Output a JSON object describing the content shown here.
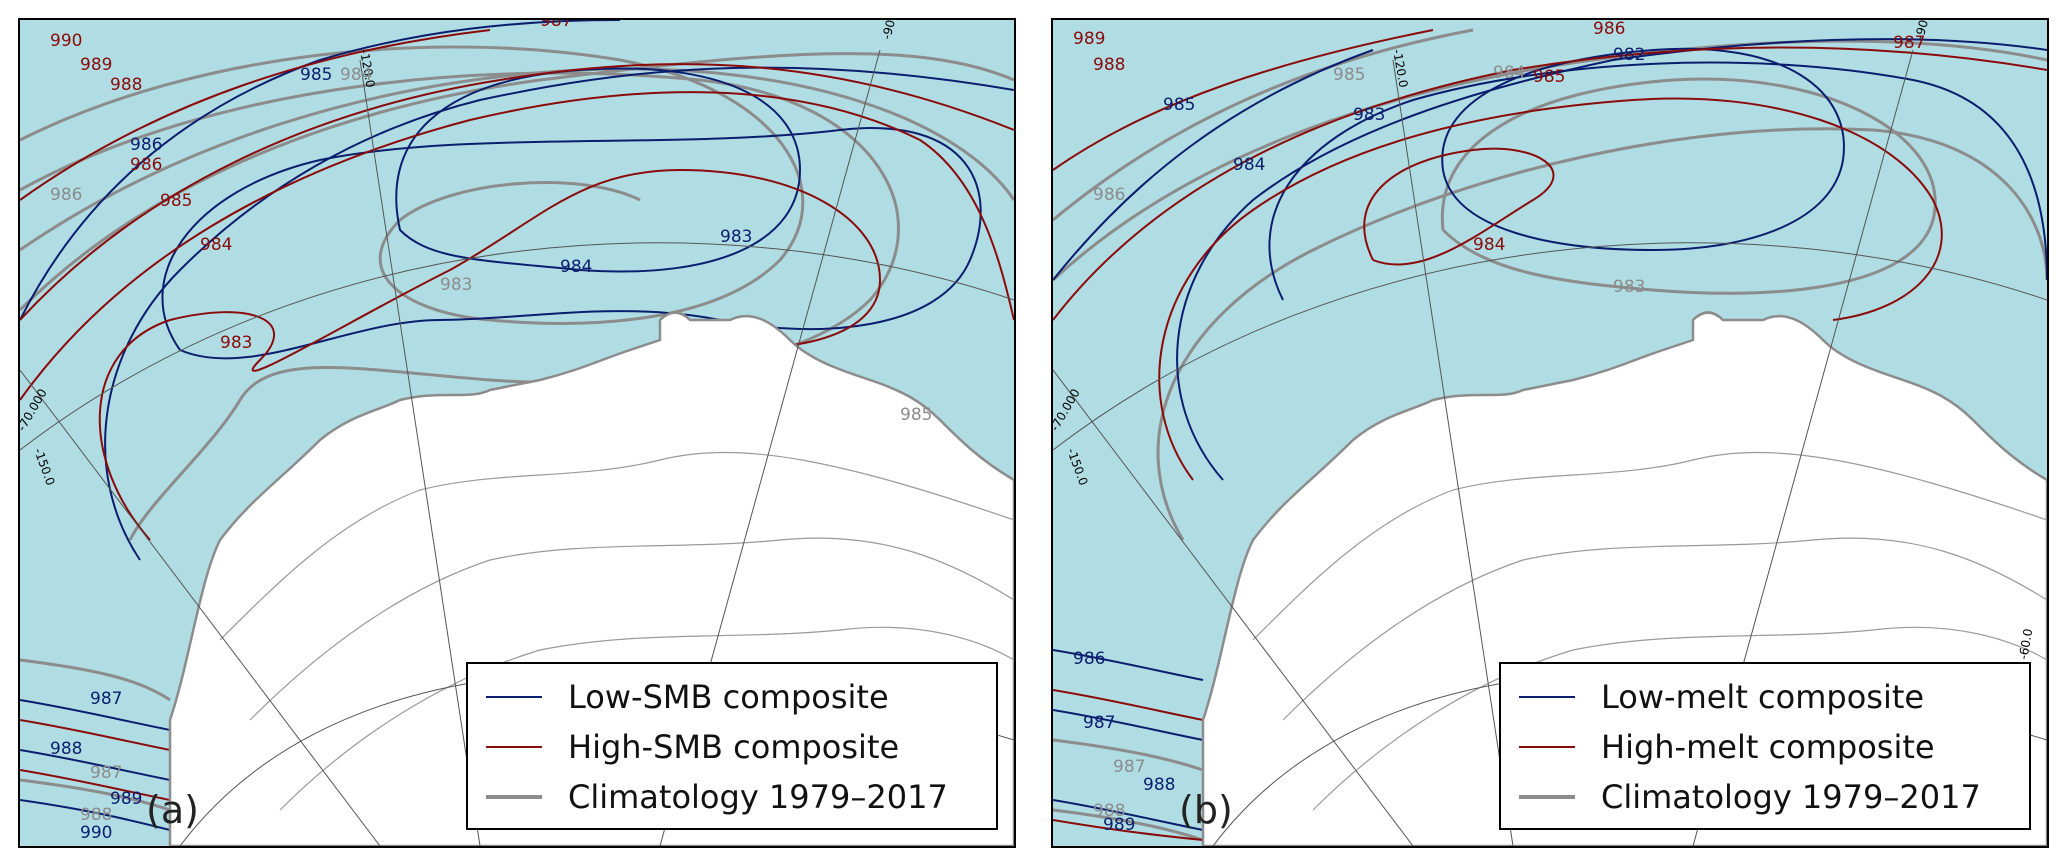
{
  "colors": {
    "ocean": "#b0dde3",
    "low": "#0b1d6e",
    "high": "#8b0a0a",
    "clim": "#8c8c8c",
    "land": "#ffffff",
    "elev": "#9a9a9a",
    "grid": "#555555"
  },
  "panels": [
    {
      "tag": "(a)",
      "legend": [
        {
          "label": "Low-SMB composite",
          "color": "low"
        },
        {
          "label": "High-SMB composite",
          "color": "high"
        },
        {
          "label": "Climatology 1979–2017",
          "color": "clim"
        }
      ],
      "grid_labels": [
        "-120.0",
        "-90.0",
        "-70.000",
        "-150.0"
      ],
      "contour_labels": [
        {
          "text": "983",
          "series": "low"
        },
        {
          "text": "984",
          "series": "low"
        },
        {
          "text": "985",
          "series": "low"
        },
        {
          "text": "986",
          "series": "low"
        },
        {
          "text": "987",
          "series": "low"
        },
        {
          "text": "988",
          "series": "low"
        },
        {
          "text": "989",
          "series": "low"
        },
        {
          "text": "990",
          "series": "low"
        },
        {
          "text": "983",
          "series": "high"
        },
        {
          "text": "984",
          "series": "high"
        },
        {
          "text": "985",
          "series": "high"
        },
        {
          "text": "986",
          "series": "high"
        },
        {
          "text": "987",
          "series": "high"
        },
        {
          "text": "988",
          "series": "high"
        },
        {
          "text": "989",
          "series": "high"
        },
        {
          "text": "990",
          "series": "high"
        },
        {
          "text": "983",
          "series": "clim"
        },
        {
          "text": "984",
          "series": "clim"
        },
        {
          "text": "985",
          "series": "clim"
        },
        {
          "text": "986",
          "series": "clim"
        },
        {
          "text": "987",
          "series": "clim"
        },
        {
          "text": "988",
          "series": "clim"
        }
      ]
    },
    {
      "tag": "(b)",
      "legend": [
        {
          "label": "Low-melt composite",
          "color": "low"
        },
        {
          "label": "High-melt composite",
          "color": "high"
        },
        {
          "label": "Climatology 1979–2017",
          "color": "clim"
        }
      ],
      "grid_labels": [
        "-120.0",
        "-90.0",
        "-70.000",
        "-150.0",
        "-60.0"
      ],
      "contour_labels": [
        {
          "text": "982",
          "series": "low"
        },
        {
          "text": "983",
          "series": "low"
        },
        {
          "text": "984",
          "series": "low"
        },
        {
          "text": "985",
          "series": "low"
        },
        {
          "text": "986",
          "series": "low"
        },
        {
          "text": "987",
          "series": "low"
        },
        {
          "text": "988",
          "series": "low"
        },
        {
          "text": "989",
          "series": "low"
        },
        {
          "text": "984",
          "series": "high"
        },
        {
          "text": "985",
          "series": "high"
        },
        {
          "text": "986",
          "series": "high"
        },
        {
          "text": "987",
          "series": "high"
        },
        {
          "text": "988",
          "series": "high"
        },
        {
          "text": "989",
          "series": "high"
        },
        {
          "text": "983",
          "series": "clim"
        },
        {
          "text": "984",
          "series": "clim"
        },
        {
          "text": "985",
          "series": "clim"
        },
        {
          "text": "986",
          "series": "clim"
        },
        {
          "text": "987",
          "series": "clim"
        },
        {
          "text": "988",
          "series": "clim"
        }
      ]
    }
  ]
}
